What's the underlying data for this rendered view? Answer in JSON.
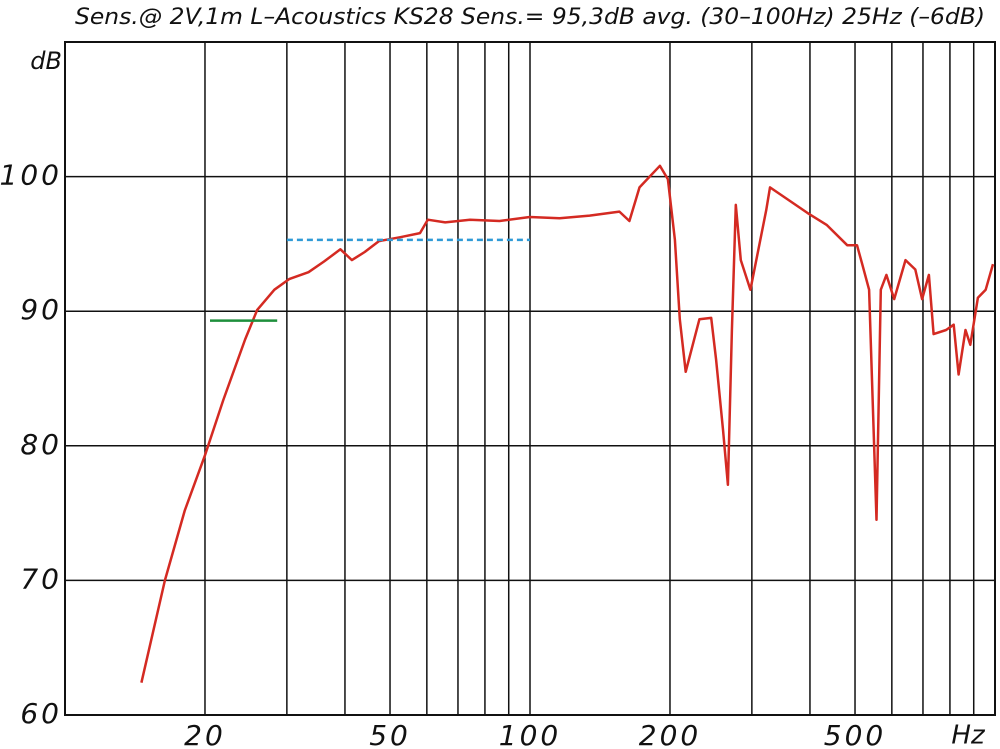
{
  "chart_data": {
    "type": "line",
    "title": "Sens.@ 2V,1m  L–Acoustics KS28  Sens.= 95,3dB  avg. (30–100Hz) 25Hz (–6dB)",
    "x_label": "Hz",
    "y_label": "dB",
    "xscale": "log",
    "xlim": [
      10,
      1000
    ],
    "ylim": [
      60,
      110
    ],
    "xticks": [
      20,
      50,
      100,
      200,
      500
    ],
    "x_minor_grid": [
      30,
      40,
      60,
      70,
      80,
      90,
      300,
      400,
      600,
      700,
      800,
      900
    ],
    "yticks": [
      60,
      70,
      80,
      90,
      100
    ],
    "grid": true,
    "series": [
      {
        "color": "#d42a22",
        "style": "solid",
        "x": [
          14.6,
          16.4,
          18.1,
          20,
          21.9,
          24.4,
          25.9,
          28.2,
          30.4,
          33.4,
          36.1,
          39.1,
          41.4,
          44.1,
          47.3,
          52.6,
          58,
          60.3,
          65.7,
          74.3,
          86,
          99.9,
          115.8,
          134.3,
          155.7,
          163.6,
          172,
          190.3,
          198,
          204.9,
          210,
          216.2,
          231.4,
          245.3,
          251.3,
          260,
          266.5,
          271.8,
          277.1,
          284,
          297.9,
          322,
          328.2,
          358.4,
          395,
          435,
          481,
          505,
          518,
          536,
          556,
          568,
          584,
          607,
          642,
          674,
          697,
          721,
          738,
          785,
          815,
          835,
          864,
          885,
          919,
          955,
          990
        ],
        "values": [
          62.4,
          70,
          75.2,
          79.3,
          83.4,
          87.9,
          90.1,
          91.6,
          92.4,
          92.9,
          93.7,
          94.6,
          93.8,
          94.4,
          95.2,
          95.5,
          95.8,
          96.8,
          96.6,
          96.8,
          96.7,
          97,
          96.9,
          97.1,
          97.4,
          96.7,
          99.2,
          100.8,
          99.8,
          95.3,
          89.4,
          85.5,
          89.4,
          89.5,
          86.4,
          81.2,
          77.1,
          88.6,
          97.9,
          93.8,
          91.6,
          97.5,
          99.2,
          98.3,
          97.3,
          96.4,
          94.9,
          94.9,
          93.5,
          91.6,
          74.5,
          91.6,
          92.7,
          90.9,
          93.8,
          93.1,
          90.9,
          92.7,
          88.3,
          88.6,
          89,
          85.3,
          88.6,
          87.5,
          91,
          91.6,
          93.5
        ]
      },
      {
        "color": "#1e8f3c",
        "style": "solid",
        "x": [
          20.5,
          28.6
        ],
        "values": [
          89.3,
          89.3
        ]
      },
      {
        "color": "#2f9ad6",
        "style": "dashed",
        "x": [
          30,
          100
        ],
        "values": [
          95.3,
          95.3
        ]
      }
    ]
  }
}
